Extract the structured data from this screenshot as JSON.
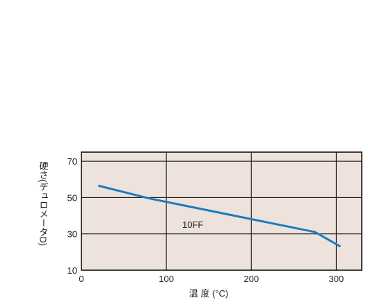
{
  "chart_data": {
    "type": "line",
    "xlabel": "温 度 (°C)",
    "ylabel": "硬さ(デュロメータD)",
    "annotation": "10FF",
    "x": [
      20,
      80,
      275,
      290,
      305
    ],
    "series": [
      {
        "name": "10FF",
        "color": "#1b7bc0",
        "values": [
          56.5,
          49.5,
          31,
          27,
          23
        ]
      }
    ],
    "xlim": [
      0,
      330
    ],
    "xticks": [
      0,
      100,
      200,
      300
    ],
    "ylim": [
      10,
      75
    ],
    "yticks": [
      10,
      30,
      50,
      70
    ],
    "grid": true
  }
}
